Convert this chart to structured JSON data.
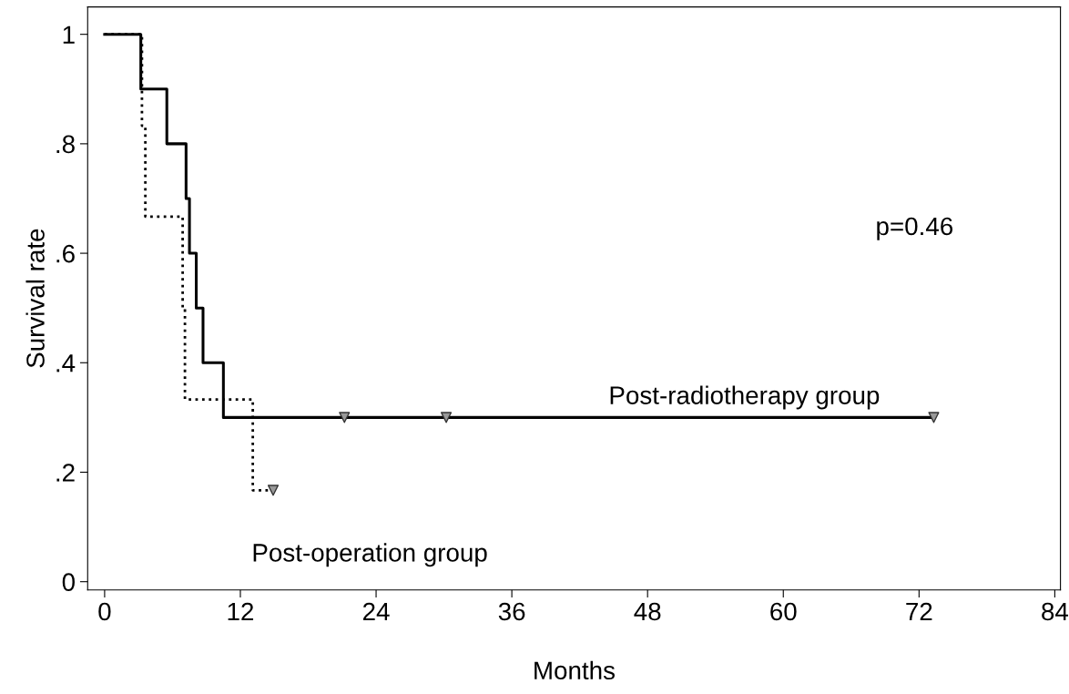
{
  "chart_data": {
    "type": "step",
    "xlabel": "Months",
    "ylabel": "Survival rate",
    "xlim": [
      -1.5,
      84.5
    ],
    "ylim": [
      -0.015,
      1.05
    ],
    "xticks": [
      0,
      12,
      24,
      36,
      48,
      60,
      72,
      84
    ],
    "yticks": [
      {
        "value": 0,
        "label": "0"
      },
      {
        "value": 0.2,
        "label": ".2"
      },
      {
        "value": 0.4,
        "label": ".4"
      },
      {
        "value": 0.6,
        "label": ".6"
      },
      {
        "value": 0.8,
        "label": ".8"
      },
      {
        "value": 1,
        "label": "1"
      }
    ],
    "grid": false,
    "series": [
      {
        "color": "#000000",
        "line_style": "solid",
        "x": [
          0,
          3.2,
          5.5,
          7.2,
          7.5,
          8.1,
          8.7,
          10.5,
          73.3
        ],
        "values": [
          1,
          0.9,
          0.8,
          0.7,
          0.6,
          0.5,
          0.4,
          0.3,
          0.3
        ]
      },
      {
        "color": "#000000",
        "line_style": "dotted",
        "x": [
          0,
          3.3,
          3.6,
          6.9,
          7.1,
          13.1,
          14.9
        ],
        "values": [
          1,
          0.833,
          0.667,
          0.5,
          0.333,
          0.167,
          0.167
        ]
      },
      {
        "type": "scatter",
        "marker": "triangle",
        "color": "#999999",
        "x": [
          21.2,
          30.2,
          73.3,
          14.9
        ],
        "values": [
          0.3,
          0.3,
          0.3,
          0.167
        ]
      }
    ],
    "annotations": [
      "Post-radiotherapy group",
      "Post-operation group",
      "p=0.46"
    ]
  }
}
